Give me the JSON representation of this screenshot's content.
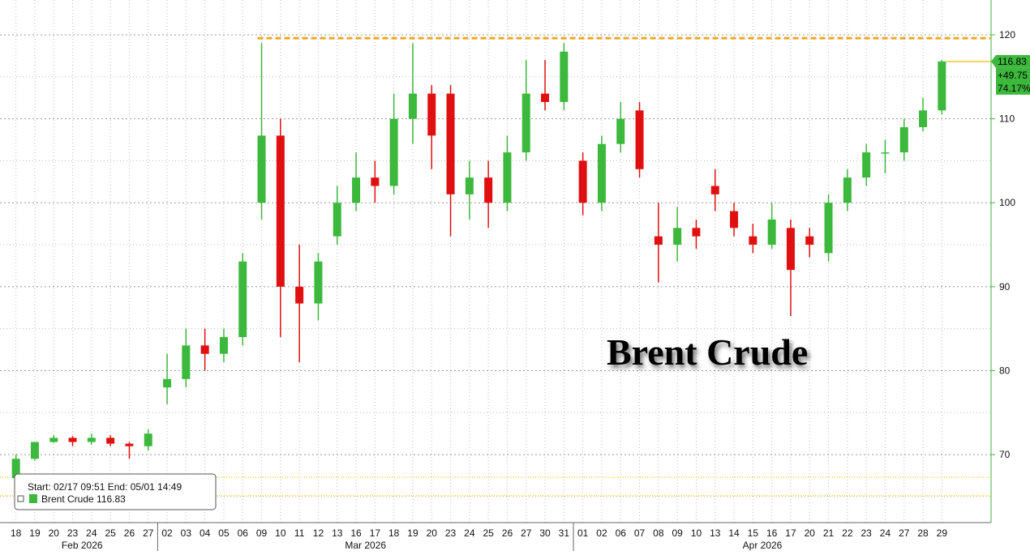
{
  "chart_data": {
    "type": "candlestick",
    "annotation": "Brent Crude",
    "groups": [
      {
        "label": "Feb 2026",
        "categories": [
          "18",
          "19",
          "20",
          "23",
          "24",
          "25",
          "26",
          "27"
        ]
      },
      {
        "label": "Mar 2026",
        "categories": [
          "02",
          "03",
          "04",
          "05",
          "06",
          "09",
          "10",
          "11",
          "12",
          "13",
          "16",
          "17",
          "18",
          "19",
          "20",
          "23",
          "24",
          "25",
          "26",
          "27",
          "30",
          "31"
        ]
      },
      {
        "label": "Apr 2026",
        "categories": [
          "01",
          "02",
          "06",
          "07",
          "08",
          "09",
          "10",
          "13",
          "14",
          "15",
          "16",
          "17",
          "20",
          "21",
          "22",
          "23",
          "24",
          "27",
          "28",
          "29"
        ]
      }
    ],
    "series": [
      {
        "name": "Brent Crude",
        "color_up": "#3cb83c",
        "color_down": "#e01010",
        "open": [
          67.2,
          69.5,
          71.5,
          72,
          71.5,
          72,
          71.3,
          71,
          78,
          79,
          83,
          82,
          84,
          100,
          108,
          90,
          88,
          96,
          100,
          103,
          102,
          110,
          113,
          113,
          101,
          103,
          100,
          106,
          113,
          112,
          105,
          100,
          107,
          111,
          96,
          95,
          97,
          102,
          99,
          96,
          95,
          97,
          96,
          94,
          100,
          103,
          106,
          106,
          109,
          111
        ],
        "high": [
          70,
          71.5,
          72.3,
          72.2,
          72.5,
          72.3,
          71.5,
          73,
          82,
          85,
          85,
          85,
          94,
          119,
          110,
          95,
          94,
          102,
          106,
          105,
          113,
          119,
          114,
          114,
          105,
          105,
          108,
          117,
          117,
          119,
          106,
          108,
          112,
          112,
          100,
          99.5,
          98,
          104,
          100,
          97.5,
          100,
          98,
          97,
          101,
          104,
          107,
          107.5,
          110,
          112.5,
          117
        ],
        "low": [
          67,
          69.3,
          71.4,
          71,
          71.2,
          71,
          69.5,
          70.5,
          76,
          78,
          80,
          81,
          83,
          98,
          84,
          81,
          86,
          95,
          99,
          100,
          101,
          107,
          104,
          96,
          98,
          97,
          99,
          105,
          111,
          111,
          98.5,
          99,
          106,
          103,
          90.5,
          93,
          94.5,
          99,
          96,
          94,
          94.5,
          86.5,
          93.5,
          93,
          99,
          102,
          103.5,
          105,
          108.5,
          110.5
        ],
        "close": [
          69.5,
          71.5,
          72,
          71.5,
          72,
          71.3,
          71,
          72.5,
          79,
          83,
          82,
          84,
          93,
          108,
          90,
          88,
          93,
          100,
          103,
          102,
          110,
          113,
          108,
          101,
          103,
          100,
          106,
          113,
          112,
          118,
          100,
          107,
          110,
          104,
          95,
          97,
          96,
          101,
          97,
          95,
          98,
          92,
          95,
          100,
          103,
          106,
          106,
          109,
          111,
          116.83
        ]
      }
    ],
    "ylim": [
      61.9,
      124.15
    ],
    "yticks": [
      70,
      80,
      90,
      100,
      110,
      120
    ],
    "minor_grid": [
      65,
      75,
      85,
      95,
      105,
      115
    ],
    "reference_lines": [
      {
        "value": 119.6,
        "color": "#f5a623",
        "style": "dashed"
      },
      {
        "value": 67.3,
        "color": "#e8c200",
        "style": "dotted"
      },
      {
        "value": 65.1,
        "color": "#e8c200",
        "style": "dotted"
      }
    ],
    "last_label": {
      "price": "116.83",
      "change": "+49.75",
      "change_pct": "74.17%"
    },
    "legend": {
      "range": "Start: 02/17 09:51 End: 05/01 14:49",
      "value": "116.83"
    }
  }
}
